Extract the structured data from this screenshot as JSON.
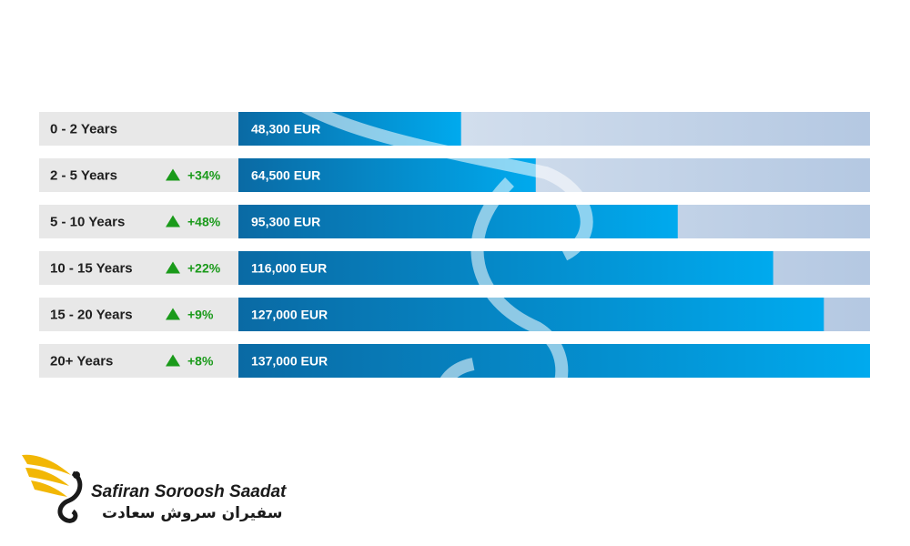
{
  "chart_data": {
    "type": "bar",
    "orientation": "horizontal",
    "categories": [
      "0 - 2 Years",
      "2 - 5 Years",
      "5 - 10 Years",
      "10 - 15 Years",
      "15 - 20 Years",
      "20+ Years"
    ],
    "values": [
      48300,
      64500,
      95300,
      116000,
      127000,
      137000
    ],
    "value_labels": [
      "48,300 EUR",
      "64,500 EUR",
      "95,300 EUR",
      "116,000 EUR",
      "127,000 EUR",
      "137,000 EUR"
    ],
    "changes": [
      "",
      "+34%",
      "+48%",
      "+22%",
      "+9%",
      "+8%"
    ],
    "xlim": [
      0,
      137000
    ],
    "grid": false,
    "legend": "none"
  },
  "colors": {
    "bar_dark": "#0a6aa4",
    "bar_light": "#00aaee",
    "track": "#b4c8e2",
    "label_bg": "#e8e8e8",
    "change_up": "#1a9a1a",
    "brand_gold": "#f2b705"
  },
  "icons": {
    "change": "up-triangle-icon",
    "logo": "swan-wing-logo-icon"
  },
  "brand": {
    "name_en": "Safiran Soroosh Saadat",
    "name_fa": "سفیران سروش سعادت"
  }
}
